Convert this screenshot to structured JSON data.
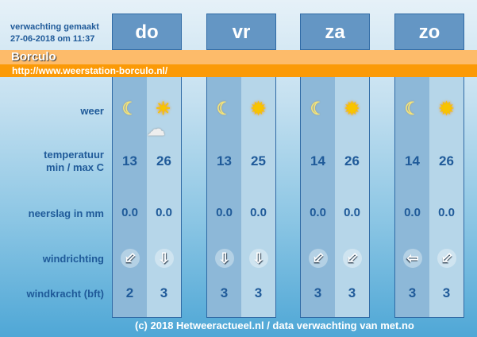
{
  "forecast_made_label": "verwachting gemaakt",
  "forecast_made_time": "27-06-2018 om 11:37",
  "location": "Borculo",
  "url": "http://www.weerstation-borculo.nl/",
  "row_labels": {
    "weather": "weer",
    "temp_line1": "temperatuur",
    "temp_line2": "min / max C",
    "precip": "neerslag in mm",
    "wind_dir": "windrichting",
    "wind_force": "windkracht (bft)"
  },
  "days": [
    {
      "name": "do",
      "icons": [
        "moon-icon",
        "sun-cloud-icon"
      ],
      "temp_min": "13",
      "temp_max": "26",
      "precip": [
        "0.0",
        "0.0"
      ],
      "wind_dir": [
        "SW",
        "S"
      ],
      "wind_force": [
        "2",
        "3"
      ]
    },
    {
      "name": "vr",
      "icons": [
        "moon-icon",
        "sun-icon"
      ],
      "temp_min": "13",
      "temp_max": "25",
      "precip": [
        "0.0",
        "0.0"
      ],
      "wind_dir": [
        "S",
        "S"
      ],
      "wind_force": [
        "3",
        "3"
      ]
    },
    {
      "name": "za",
      "icons": [
        "moon-icon",
        "sun-icon"
      ],
      "temp_min": "14",
      "temp_max": "26",
      "precip": [
        "0.0",
        "0.0"
      ],
      "wind_dir": [
        "SW",
        "SW"
      ],
      "wind_force": [
        "3",
        "3"
      ]
    },
    {
      "name": "zo",
      "icons": [
        "moon-icon",
        "sun-icon"
      ],
      "temp_min": "14",
      "temp_max": "26",
      "precip": [
        "0.0",
        "0.0"
      ],
      "wind_dir": [
        "W",
        "SW"
      ],
      "wind_force": [
        "3",
        "3"
      ]
    }
  ],
  "footer": "(c) 2018 Hetweeractueel.nl / data verwachting van met.no"
}
